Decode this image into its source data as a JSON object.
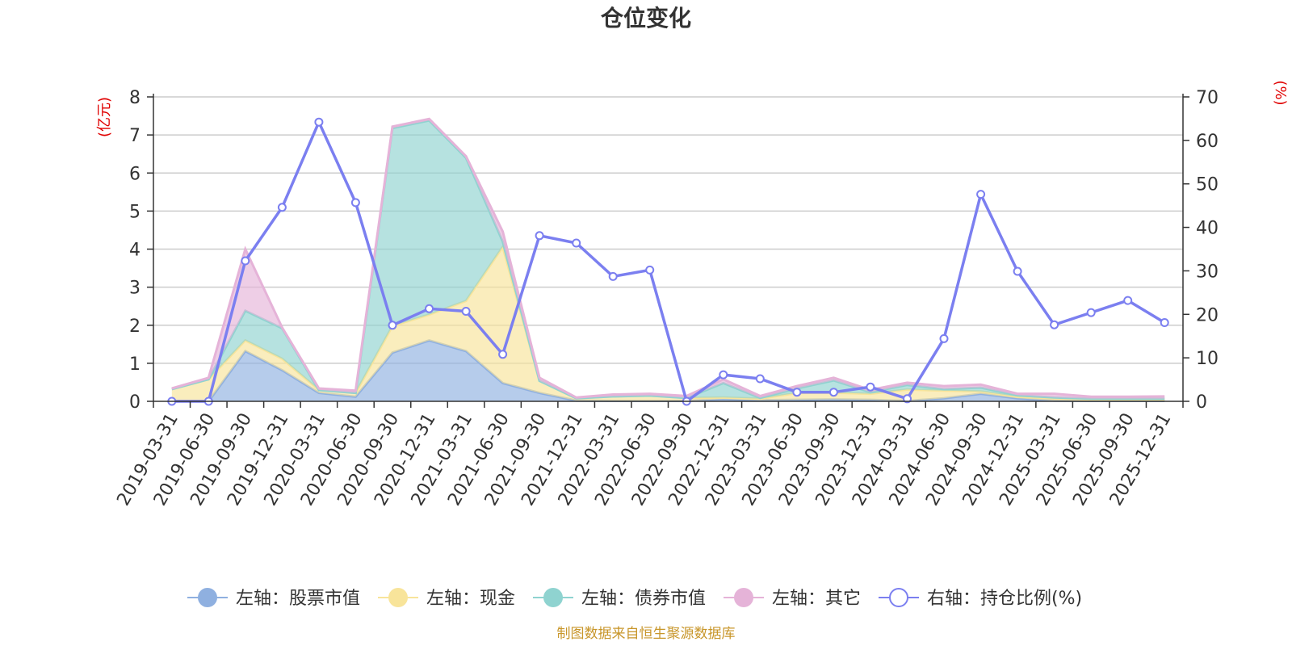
{
  "chart_data": {
    "type": "area",
    "title": "仓位变化",
    "left_unit": "(亿元)",
    "right_unit": "(%)",
    "categories": [
      "2019-03-31",
      "2019-06-30",
      "2019-09-30",
      "2019-12-31",
      "2020-03-31",
      "2020-06-30",
      "2020-09-30",
      "2020-12-31",
      "2021-03-31",
      "2021-06-30",
      "2021-09-30",
      "2021-12-31",
      "2022-03-31",
      "2022-06-30",
      "2022-09-30",
      "2022-12-31",
      "2023-03-31",
      "2023-06-30",
      "2023-09-30",
      "2023-12-31",
      "2024-03-31",
      "2024-06-30",
      "2024-09-30",
      "2024-12-31",
      "2025-03-31",
      "2025-06-30",
      "2025-09-30",
      "2025-12-31"
    ],
    "left_axis": {
      "min": 0,
      "max": 8,
      "ticks": [
        0,
        1,
        2,
        3,
        4,
        5,
        6,
        7,
        8
      ]
    },
    "right_axis": {
      "min": 0,
      "max": 70,
      "ticks": [
        0,
        10,
        20,
        30,
        40,
        50,
        60,
        70
      ]
    },
    "series": [
      {
        "name": "左轴：股票市值",
        "axis": "left",
        "kind": "area",
        "color": "#8fb0e0",
        "values": [
          0,
          0,
          1.32,
          0.82,
          0.22,
          0.12,
          1.28,
          1.6,
          1.32,
          0.48,
          0.22,
          0.02,
          0.01,
          0.01,
          0.01,
          0.06,
          0.03,
          0.04,
          0.05,
          0.04,
          0.01,
          0.08,
          0.2,
          0.08,
          0.02,
          0.01,
          0.01,
          0.01
        ]
      },
      {
        "name": "左轴：现金",
        "axis": "left",
        "kind": "area",
        "color": "#f8e49a",
        "values": [
          0.32,
          0.58,
          0.28,
          0.3,
          0.08,
          0.1,
          0.7,
          0.68,
          1.32,
          3.58,
          0.32,
          0.06,
          0.12,
          0.14,
          0.08,
          0.04,
          0.04,
          0.18,
          0.18,
          0.16,
          0.3,
          0.2,
          0.06,
          0.04,
          0.06,
          0.04,
          0.04,
          0.04
        ]
      },
      {
        "name": "左轴：债券市值",
        "axis": "left",
        "kind": "area",
        "color": "#8fd3d0",
        "values": [
          0,
          0,
          0.78,
          0.8,
          0,
          0,
          5.2,
          5.1,
          3.76,
          0.14,
          0,
          0,
          0,
          0,
          0,
          0.38,
          0.02,
          0.12,
          0.32,
          0.04,
          0.12,
          0.04,
          0.1,
          0.04,
          0.02,
          0.02,
          0.02,
          0.02
        ]
      },
      {
        "name": "左轴：其它",
        "axis": "left",
        "kind": "area",
        "color": "#e5b3d8",
        "values": [
          0.02,
          0.04,
          1.62,
          0.02,
          0.04,
          0.06,
          0.04,
          0.04,
          0.04,
          0.26,
          0.08,
          0.02,
          0.05,
          0.05,
          0.05,
          0.1,
          0.05,
          0.06,
          0.07,
          0.06,
          0.06,
          0.08,
          0.08,
          0.04,
          0.1,
          0.05,
          0.05,
          0.06
        ]
      },
      {
        "name": "右轴：持仓比例(%)",
        "axis": "right",
        "kind": "line",
        "color": "#7b7ff0",
        "values": [
          0,
          0,
          32.3,
          44.6,
          64.2,
          45.7,
          17.5,
          21.3,
          20.7,
          10.8,
          38.1,
          36.4,
          28.7,
          30.2,
          0,
          6.1,
          5.2,
          2.1,
          2.1,
          3.3,
          0.6,
          14.4,
          47.6,
          29.9,
          17.6,
          20.4,
          23.2,
          18.1
        ]
      }
    ]
  },
  "legend": [
    {
      "label": "左轴：股票市值",
      "marker": "filled-circle",
      "color": "#8fb0e0"
    },
    {
      "label": "左轴：现金",
      "marker": "filled-circle",
      "color": "#f8e49a"
    },
    {
      "label": "左轴：债券市值",
      "marker": "filled-circle",
      "color": "#8fd3d0"
    },
    {
      "label": "左轴：其它",
      "marker": "filled-circle",
      "color": "#e5b3d8"
    },
    {
      "label": "右轴：持仓比例(%)",
      "marker": "hollow-circle",
      "color": "#7b7ff0"
    }
  ],
  "source_note": "制图数据来自恒生聚源数据库"
}
